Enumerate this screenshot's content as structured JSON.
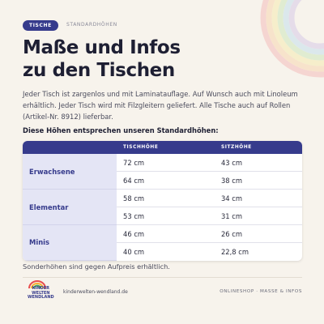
{
  "header": {
    "tag": "TISCHE",
    "breadcrumb": "STANDARDHÖHEN"
  },
  "title": [
    "Maße und Infos",
    "zu den Tischen"
  ],
  "intro": "Jeder Tisch ist zargenlos und mit Laminatauflage. Auf Wunsch auch mit Linoleum erhältlich. Jeder Tisch wird mit Filzgleitern geliefert. Alle Tische auch auf Rollen (Artikel-Nr. 8912) lieferbar.",
  "subheading": "Diese Höhen entsprechen unseren Standardhöhen:",
  "table": {
    "columns": [
      "TISCHHÖHE",
      "SITZHÖHE"
    ],
    "groups": [
      {
        "label": "Erwachsene",
        "rows": [
          [
            "72 cm",
            "43 cm"
          ],
          [
            "64 cm",
            "38 cm"
          ]
        ]
      },
      {
        "label": "Elementar",
        "rows": [
          [
            "58 cm",
            "34 cm"
          ],
          [
            "53 cm",
            "31 cm"
          ]
        ]
      },
      {
        "label": "Minis",
        "rows": [
          [
            "46 cm",
            "26 cm"
          ],
          [
            "40 cm",
            "22,8 cm"
          ]
        ]
      }
    ]
  },
  "note": "Sonderhöhen sind gegen Aufpreis erhältlich.",
  "footer": {
    "logo": [
      "KINDER",
      "WELTEN",
      "WENDLAND"
    ],
    "url": "kinderwelten-wendland.de",
    "section": "ONLINESHOP · MASSE & INFOS"
  }
}
